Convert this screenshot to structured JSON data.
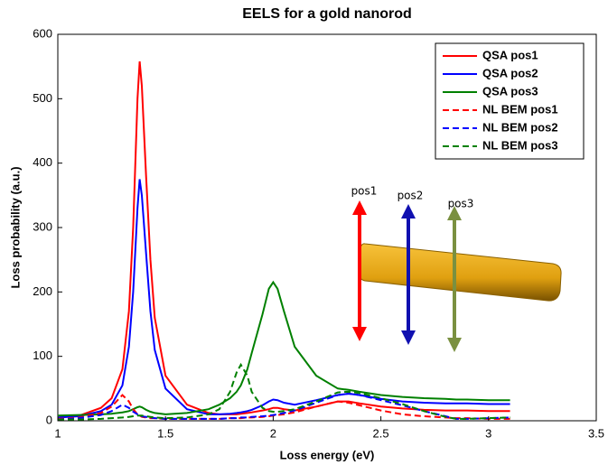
{
  "chart_data": {
    "type": "line",
    "title": "EELS for a gold nanorod",
    "x_label": "Loss energy (eV)",
    "y_label": "Loss probability (a.u.)",
    "xlim": [
      1,
      3.5
    ],
    "xticks": [
      1,
      1.5,
      2,
      2.5,
      3,
      3.5
    ],
    "ylim": [
      0,
      600
    ],
    "yticks": [
      0,
      100,
      200,
      300,
      400,
      500,
      600
    ],
    "grid": false,
    "legend": "upper right",
    "annotations": [
      "pos1",
      "pos2",
      "pos3"
    ],
    "x": [
      1.0,
      1.1,
      1.2,
      1.25,
      1.3,
      1.33,
      1.35,
      1.37,
      1.38,
      1.39,
      1.41,
      1.43,
      1.45,
      1.5,
      1.6,
      1.7,
      1.75,
      1.8,
      1.83,
      1.85,
      1.88,
      1.9,
      1.95,
      1.98,
      2.0,
      2.02,
      2.05,
      2.1,
      2.2,
      2.3,
      2.35,
      2.4,
      2.5,
      2.6,
      2.7,
      2.8,
      2.85,
      2.9,
      3.0,
      3.1
    ],
    "series": [
      {
        "name": "QSA pos1",
        "color": "#ff0000",
        "linestyle": "solid",
        "values": [
          5,
          8,
          20,
          35,
          80,
          170,
          300,
          500,
          558,
          520,
          380,
          250,
          160,
          70,
          25,
          12,
          10,
          10,
          10,
          11,
          12,
          13,
          16,
          18,
          20,
          20,
          18,
          16,
          22,
          30,
          30,
          27,
          22,
          19,
          17,
          16,
          16,
          16,
          15,
          15
        ]
      },
      {
        "name": "QSA pos2",
        "color": "#0000ff",
        "linestyle": "solid",
        "values": [
          5,
          7,
          15,
          25,
          55,
          115,
          200,
          330,
          375,
          350,
          260,
          170,
          110,
          50,
          18,
          10,
          10,
          11,
          12,
          13,
          15,
          17,
          24,
          30,
          33,
          32,
          28,
          25,
          32,
          40,
          42,
          40,
          34,
          30,
          28,
          27,
          27,
          27,
          26,
          26
        ]
      },
      {
        "name": "QSA pos3",
        "color": "#008000",
        "linestyle": "solid",
        "values": [
          8,
          9,
          10,
          11,
          13,
          15,
          18,
          21,
          22,
          21,
          17,
          14,
          12,
          10,
          12,
          18,
          25,
          35,
          45,
          55,
          80,
          105,
          165,
          205,
          215,
          205,
          170,
          115,
          70,
          50,
          48,
          45,
          40,
          37,
          35,
          34,
          33,
          33,
          32,
          32
        ]
      },
      {
        "name": "NL BEM pos1",
        "color": "#ff0000",
        "linestyle": "dashed",
        "values": [
          3,
          5,
          12,
          22,
          40,
          30,
          18,
          10,
          8,
          6,
          5,
          4,
          4,
          3,
          3,
          3,
          3,
          4,
          4,
          4,
          5,
          5,
          6,
          7,
          8,
          9,
          10,
          13,
          22,
          30,
          28,
          24,
          16,
          10,
          7,
          5,
          4,
          4,
          3,
          3
        ]
      },
      {
        "name": "NL BEM pos2",
        "color": "#0000ff",
        "linestyle": "dashed",
        "values": [
          2,
          4,
          9,
          15,
          25,
          20,
          14,
          10,
          8,
          7,
          6,
          5,
          4,
          3,
          3,
          3,
          3,
          4,
          4,
          5,
          5,
          6,
          7,
          8,
          9,
          10,
          12,
          16,
          28,
          40,
          42,
          40,
          32,
          24,
          15,
          7,
          3,
          3,
          4,
          5
        ]
      },
      {
        "name": "NL BEM pos3",
        "color": "#008000",
        "linestyle": "dashed",
        "values": [
          2,
          2,
          3,
          4,
          5,
          6,
          7,
          8,
          8,
          8,
          7,
          6,
          5,
          4,
          5,
          10,
          18,
          45,
          75,
          87,
          70,
          45,
          20,
          15,
          14,
          14,
          15,
          18,
          30,
          44,
          45,
          43,
          35,
          26,
          15,
          6,
          3,
          3,
          4,
          5
        ]
      }
    ]
  }
}
